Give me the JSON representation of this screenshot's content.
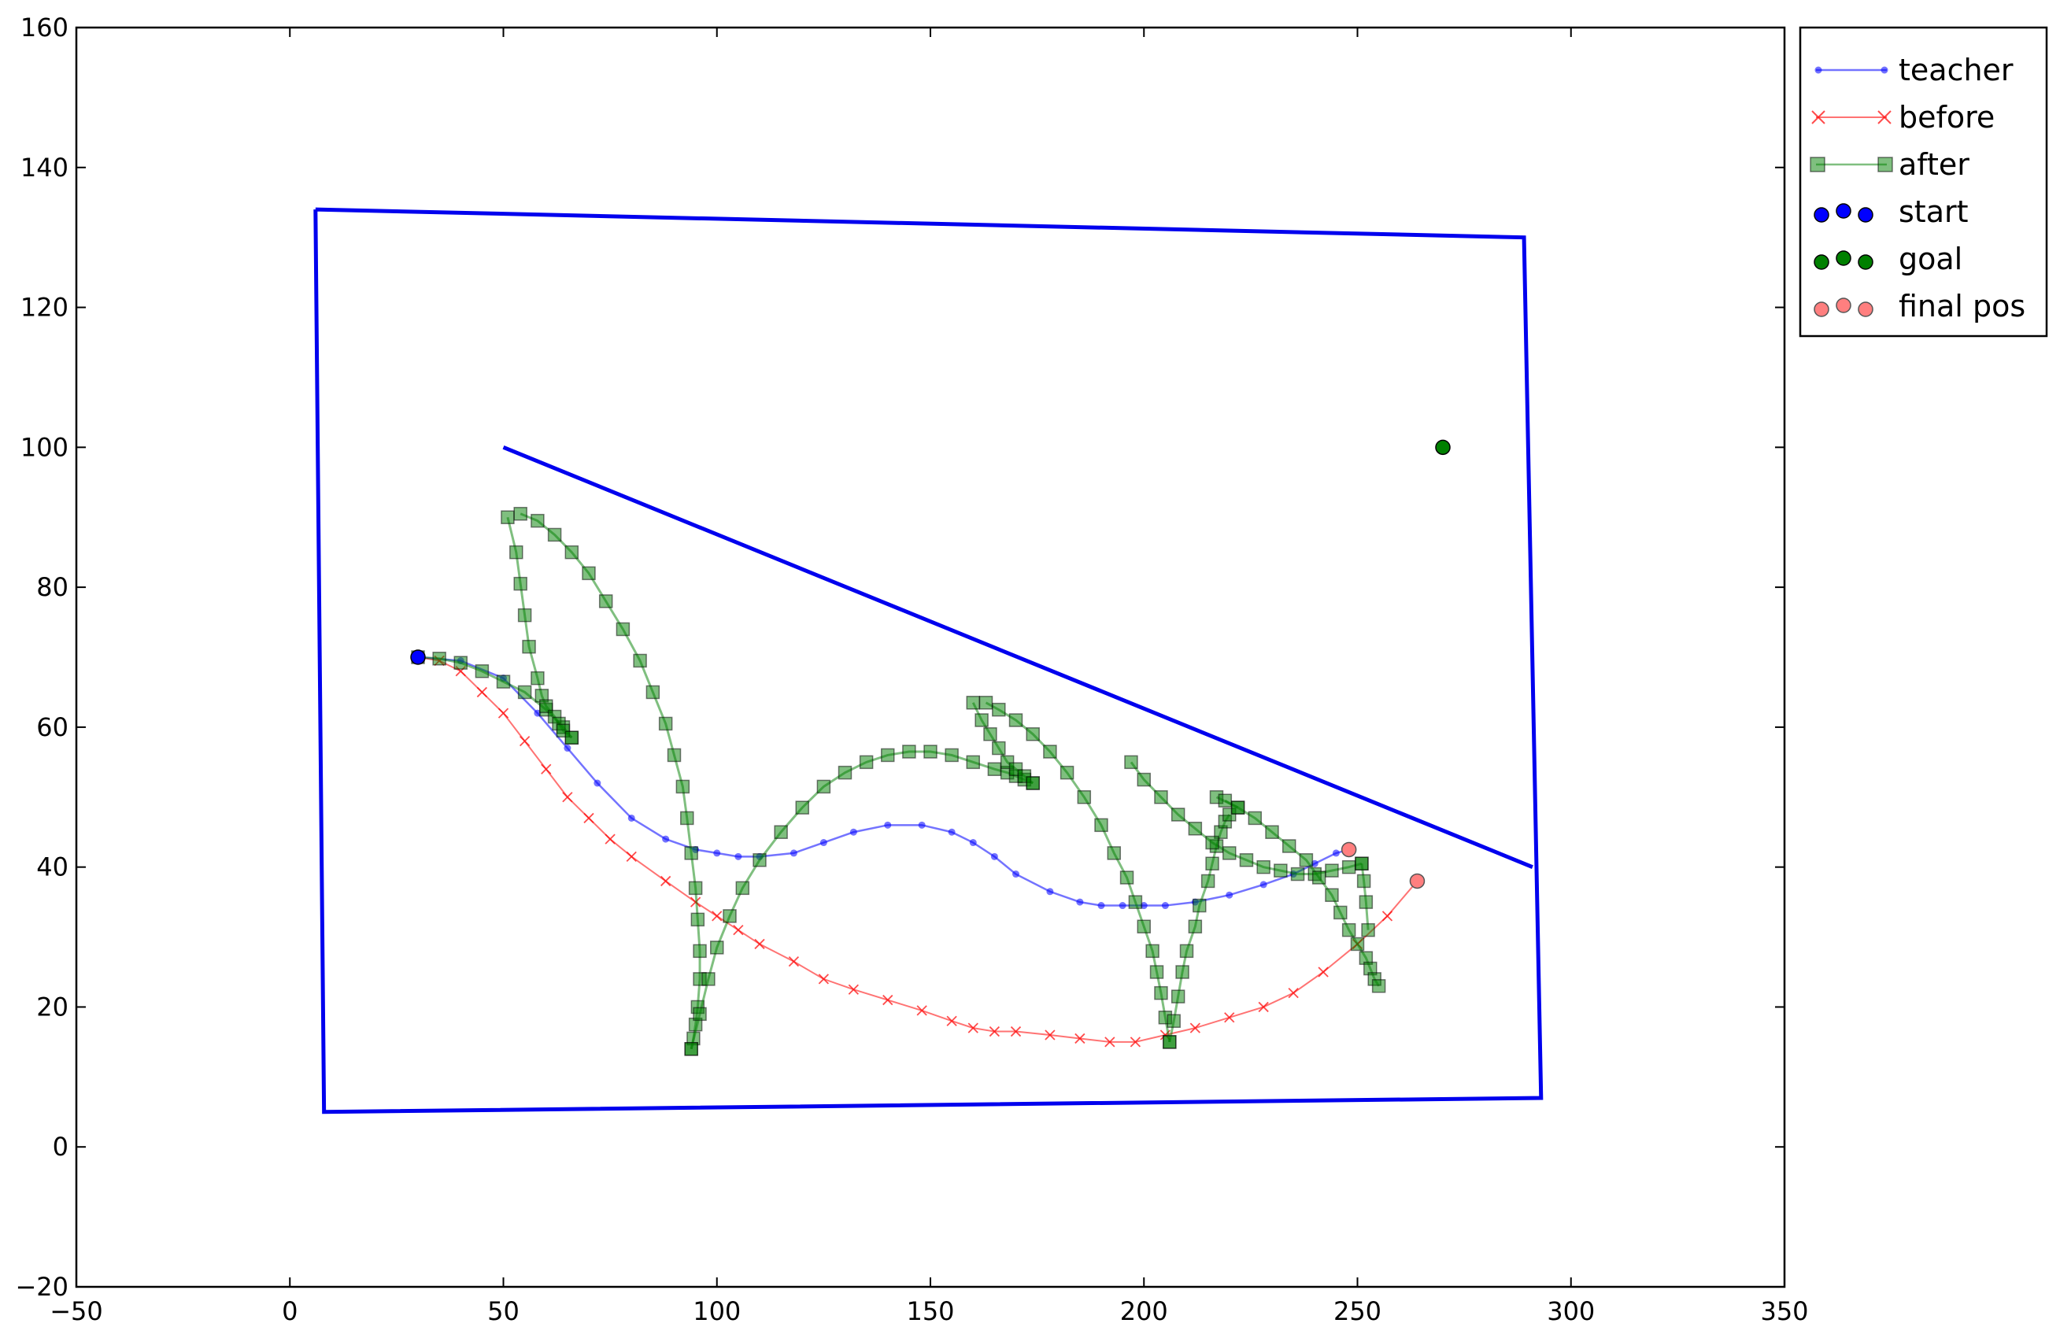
{
  "chart_data": {
    "type": "scatter",
    "title": "",
    "xlabel": "",
    "ylabel": "",
    "xlim": [
      -50,
      350
    ],
    "ylim": [
      -20,
      160
    ],
    "xticks": [
      "−50",
      "0",
      "50",
      "100",
      "150",
      "200",
      "250",
      "300",
      "350"
    ],
    "xtick_values": [
      -50,
      0,
      50,
      100,
      150,
      200,
      250,
      300,
      350
    ],
    "yticks": [
      "−20",
      "0",
      "20",
      "40",
      "60",
      "80",
      "100",
      "120",
      "140",
      "160"
    ],
    "ytick_values": [
      -20,
      0,
      20,
      40,
      60,
      80,
      100,
      120,
      140,
      160
    ],
    "grid": false,
    "legend_position": "outside-top-right",
    "walls": [
      {
        "x": [
          6,
          289,
          293,
          8,
          6
        ],
        "y": [
          134,
          130,
          7,
          5,
          134
        ],
        "color": "#0000ee"
      },
      {
        "x": [
          50,
          291
        ],
        "y": [
          100,
          40
        ],
        "color": "#0000ee"
      }
    ],
    "series": [
      {
        "name": "teacher",
        "marker": "dot",
        "color": "#0000ff",
        "segments": [
          {
            "x": [
              30,
              40,
              50,
              58,
              65,
              72,
              80,
              88,
              95,
              100,
              105,
              110,
              118,
              125,
              132,
              140,
              148,
              155,
              160,
              165,
              170,
              178,
              185,
              190,
              195,
              200,
              205,
              212,
              220,
              228,
              235,
              240,
              245,
              248
            ],
            "y": [
              70,
              69.5,
              67,
              62,
              57,
              52,
              47,
              44,
              42.5,
              42,
              41.5,
              41.5,
              42,
              43.5,
              45,
              46,
              46,
              45,
              43.5,
              41.5,
              39,
              36.5,
              35,
              34.5,
              34.5,
              34.5,
              34.5,
              35,
              36,
              37.5,
              39,
              40.5,
              42,
              42.5
            ]
          }
        ]
      },
      {
        "name": "before",
        "marker": "x",
        "color": "#ff0000",
        "segments": [
          {
            "x": [
              30,
              35,
              40,
              45,
              50,
              55,
              60,
              65,
              70,
              75,
              80,
              88,
              95,
              100,
              105,
              110,
              118,
              125,
              132,
              140,
              148,
              155,
              160,
              165,
              170,
              178,
              185,
              192,
              198,
              205,
              212,
              220,
              228,
              235,
              242,
              250,
              257,
              264
            ],
            "y": [
              70,
              69.5,
              68,
              65,
              62,
              58,
              54,
              50,
              47,
              44,
              41.5,
              38,
              35,
              33,
              31,
              29,
              26.5,
              24,
              22.5,
              21,
              19.5,
              18,
              17,
              16.5,
              16.5,
              16,
              15.5,
              15,
              15,
              16,
              17,
              18.5,
              20,
              22,
              25,
              29,
              33,
              38
            ]
          }
        ]
      },
      {
        "name": "after",
        "marker": "square",
        "color": "#008000",
        "segments": [
          {
            "x": [
              30,
              35,
              40,
              45,
              50,
              55,
              60,
              64,
              66
            ],
            "y": [
              70,
              69.8,
              69.2,
              68,
              66.5,
              65,
              62.5,
              60,
              58.5
            ]
          },
          {
            "x": [
              51,
              53,
              54,
              55,
              56,
              58,
              59,
              60,
              62,
              63,
              64,
              66
            ],
            "y": [
              90,
              85,
              80.5,
              76,
              71.5,
              67,
              64.5,
              63,
              61.5,
              60.5,
              59.5,
              58.5
            ]
          },
          {
            "x": [
              54,
              58,
              62,
              66,
              70,
              74,
              78,
              82,
              85,
              88,
              90,
              92,
              93,
              94,
              95,
              95.5,
              96,
              96,
              95.5,
              95,
              94.5,
              94
            ],
            "y": [
              90.5,
              89.5,
              87.5,
              85,
              82,
              78,
              74,
              69.5,
              65,
              60.5,
              56,
              51.5,
              47,
              42,
              37,
              32.5,
              28,
              24,
              20,
              17.5,
              15.5,
              14
            ]
          },
          {
            "x": [
              94,
              96,
              98,
              100,
              103,
              106,
              110,
              115,
              120,
              125,
              130,
              135,
              140,
              145,
              150,
              155,
              160,
              165,
              168,
              170,
              172,
              174
            ],
            "y": [
              14,
              19,
              24,
              28.5,
              33,
              37,
              41,
              45,
              48.5,
              51.5,
              53.5,
              55,
              56,
              56.5,
              56.5,
              56,
              55,
              54,
              53.5,
              53,
              52.5,
              52
            ]
          },
          {
            "x": [
              160,
              162,
              164,
              166,
              168,
              170,
              172,
              174
            ],
            "y": [
              63.5,
              61,
              59,
              57,
              55,
              54,
              53,
              52
            ]
          },
          {
            "x": [
              163,
              166,
              170,
              174,
              178,
              182,
              186,
              190,
              193,
              196,
              198,
              200,
              202,
              203,
              204,
              205,
              206
            ],
            "y": [
              63.5,
              62.5,
              61,
              59,
              56.5,
              53.5,
              50,
              46,
              42,
              38.5,
              35,
              31.5,
              28,
              25,
              22,
              18.5,
              15
            ]
          },
          {
            "x": [
              206,
              207,
              208,
              209,
              210,
              212,
              213,
              215,
              216,
              217,
              218,
              219,
              220
            ],
            "y": [
              15,
              18,
              21.5,
              25,
              28,
              31.5,
              34.5,
              38,
              40.5,
              43,
              45,
              46.5,
              47.5
            ]
          },
          {
            "x": [
              197,
              200,
              204,
              208,
              212,
              216,
              220,
              224,
              228,
              232,
              236,
              240,
              244,
              248,
              251
            ],
            "y": [
              55,
              52.5,
              50,
              47.5,
              45.5,
              43.5,
              42,
              41,
              40,
              39.5,
              39,
              39,
              39.5,
              40,
              40.5
            ]
          },
          {
            "x": [
              217,
              222,
              226,
              230,
              234,
              238,
              241,
              244,
              246,
              248,
              250,
              252,
              253,
              254,
              255
            ],
            "y": [
              50,
              48.5,
              47,
              45,
              43,
              41,
              38.5,
              36,
              33.5,
              31,
              29,
              27,
              25.5,
              24,
              23
            ]
          },
          {
            "x": [
              219,
              222
            ],
            "y": [
              49.5,
              48.5
            ]
          },
          {
            "x": [
              251,
              251.5,
              252,
              252.5
            ],
            "y": [
              40.5,
              38,
              35,
              31
            ]
          }
        ]
      }
    ],
    "start": {
      "name": "start",
      "x": 30,
      "y": 70,
      "color": "#0000ff"
    },
    "goal": {
      "name": "goal",
      "x": 270,
      "y": 100,
      "color": "#008000"
    },
    "final_pos": {
      "name": "final pos",
      "points": [
        {
          "x": 248,
          "y": 42.5
        },
        {
          "x": 264,
          "y": 38
        }
      ],
      "color": "#ff7f7f"
    }
  }
}
